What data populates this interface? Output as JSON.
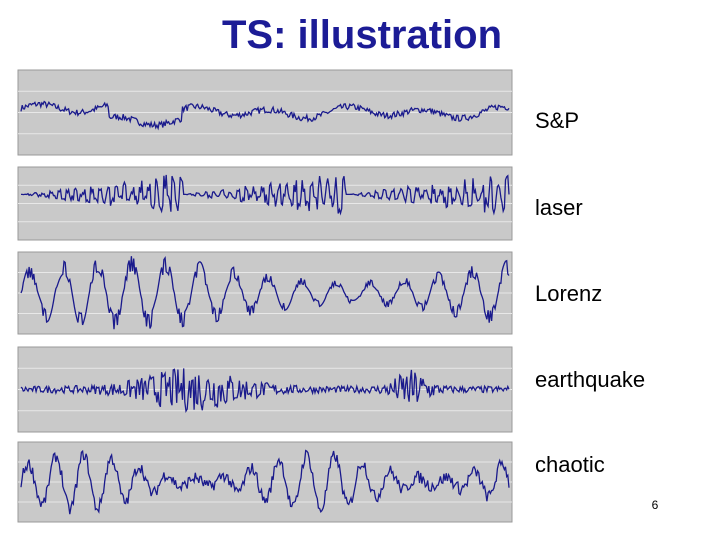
{
  "title": "TS: illustration",
  "panels": [
    {
      "label": "S&P"
    },
    {
      "label": "laser"
    },
    {
      "label": "Lorenz"
    },
    {
      "label": "earthquake"
    },
    {
      "label": "chaotic"
    }
  ],
  "page_number": "6"
}
